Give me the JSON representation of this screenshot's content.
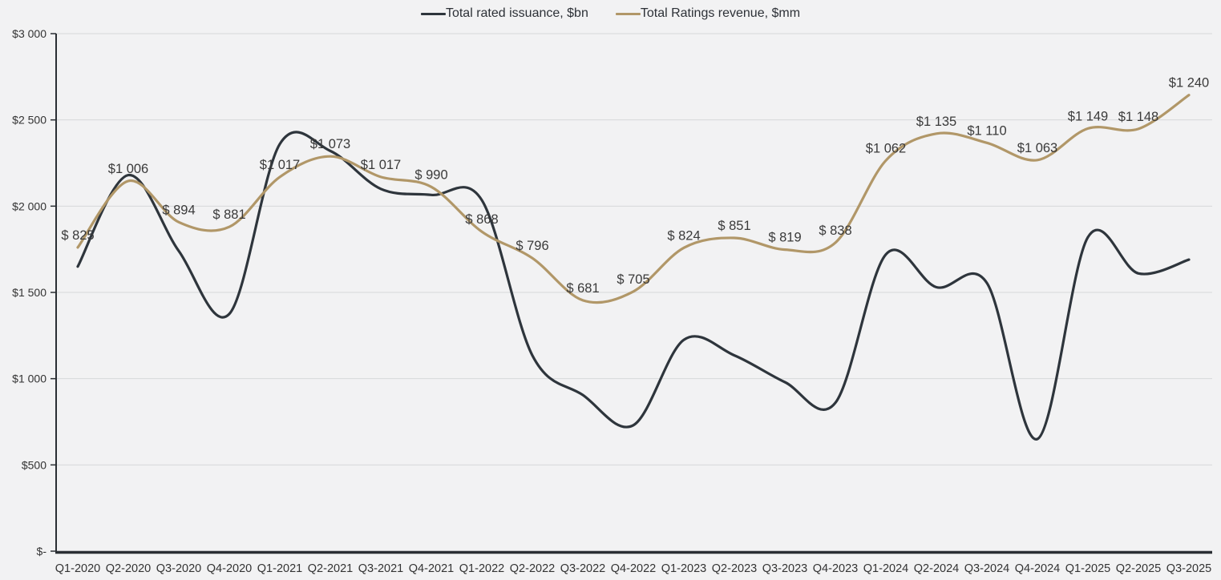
{
  "colors": {
    "background": "#f2f2f3",
    "gridline": "#d7d8da",
    "axis_line": "#2a2e33",
    "axis_text": "#333333",
    "data_label_text": "#3a3a3a",
    "issuance_line": "#2e353c",
    "revenue_line": "#b19768"
  },
  "chart_data": {
    "type": "line",
    "title": "",
    "grid": true,
    "legend_position": "top",
    "categories": [
      "Q1-2020",
      "Q2-2020",
      "Q3-2020",
      "Q4-2020",
      "Q1-2021",
      "Q2-2021",
      "Q3-2021",
      "Q4-2021",
      "Q1-2022",
      "Q2-2022",
      "Q3-2022",
      "Q4-2022",
      "Q1-2023",
      "Q2-2023",
      "Q3-2023",
      "Q4-2023",
      "Q1-2024",
      "Q2-2024",
      "Q3-2024",
      "Q4-2024",
      "Q1-2025",
      "Q2-2025",
      "Q3-2025"
    ],
    "y_axis": {
      "tick_labels": [
        "$3 000",
        "$2 500",
        "$2 000",
        "$1 500",
        "$1 000",
        "$500",
        "$-"
      ],
      "tick_values": [
        3000,
        2500,
        2000,
        1500,
        1000,
        500,
        0
      ],
      "min": 0,
      "max": 3000
    },
    "series": [
      {
        "name": "Total rated issuance, $bn",
        "axis": "primary",
        "color": "#2e353c",
        "values": [
          1650,
          2180,
          1740,
          1375,
          2360,
          2320,
          2100,
          2065,
          2035,
          1135,
          905,
          730,
          1225,
          1135,
          980,
          860,
          1720,
          1530,
          1555,
          650,
          1820,
          1610,
          1690
        ]
      },
      {
        "name": "Total Ratings revenue, $mm",
        "axis": "secondary",
        "color": "#b19768",
        "values": [
          825,
          1006,
          894,
          881,
          1017,
          1073,
          1017,
          990,
          868,
          796,
          681,
          705,
          824,
          851,
          819,
          838,
          1062,
          1135,
          1110,
          1063,
          1149,
          1148,
          1240
        ],
        "point_labels": [
          "$ 825",
          "$1 006",
          "$ 894",
          "$ 881",
          "$1 017",
          "$1 073",
          "$1 017",
          "$ 990",
          "$ 868",
          "$ 796",
          "$ 681",
          "$ 705",
          "$ 824",
          "$ 851",
          "$ 819",
          "$ 838",
          "$1 062",
          "$1 135",
          "$1 110",
          "$1 063",
          "$1 149",
          "$1 148",
          "$1 240"
        ]
      }
    ]
  }
}
